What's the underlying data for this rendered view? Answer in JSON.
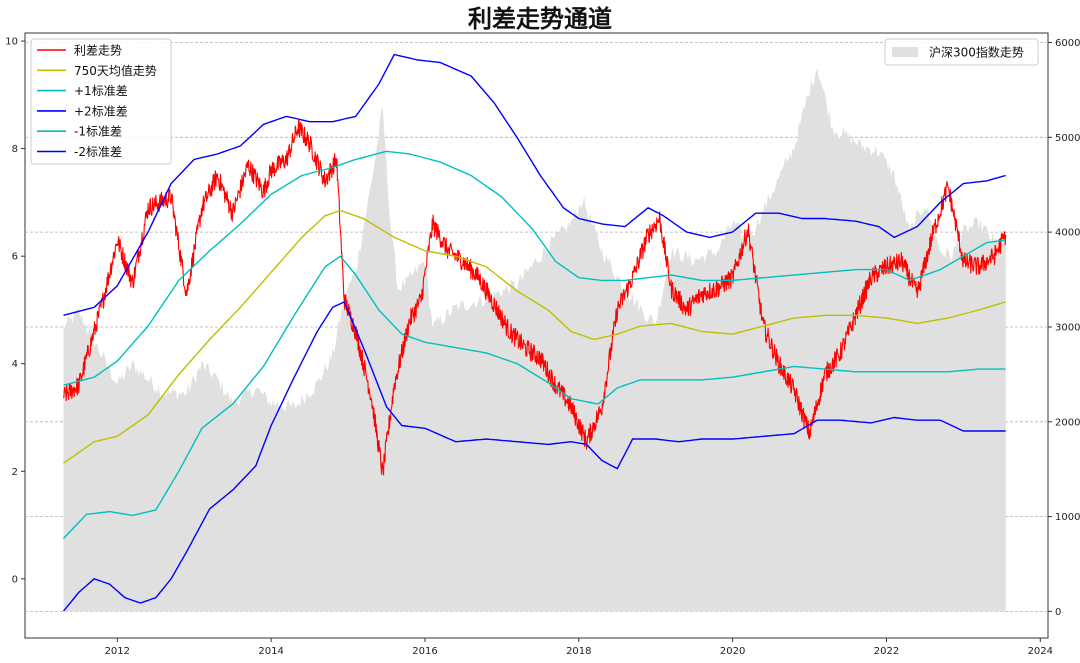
{
  "chart_data": {
    "type": "line",
    "title": "利差走势通道",
    "xlabel": "",
    "ylabel": "",
    "x_ticks": [
      "2012",
      "2014",
      "2016",
      "2018",
      "2020",
      "2022",
      "2024"
    ],
    "x_tick_values": [
      2012,
      2014,
      2016,
      2018,
      2020,
      2022,
      2024
    ],
    "xlim": [
      2010.8,
      2024.1
    ],
    "y_left_ticks": [
      "0",
      "2",
      "4",
      "6",
      "8",
      "10"
    ],
    "y_left_tick_values": [
      0,
      2,
      4,
      6,
      8,
      10
    ],
    "ylim_left": [
      -1.1,
      10.15
    ],
    "y_right_ticks": [
      "0",
      "1000",
      "2000",
      "3000",
      "4000",
      "5000",
      "6000"
    ],
    "y_right_tick_values": [
      0,
      1000,
      2000,
      3000,
      4000,
      5000,
      6000
    ],
    "ylim_right": [
      -280,
      6100
    ],
    "grid": "horizontal dashed at right-axis ticks",
    "legend_left": {
      "position": "top-left",
      "entries": [
        {
          "label": "利差走势",
          "color": "#ff0000"
        },
        {
          "label": "750天均值走势",
          "color": "#bfbf00"
        },
        {
          "label": "+1标准差",
          "color": "#00bfbf"
        },
        {
          "label": "+2标准差",
          "color": "#0000ff"
        },
        {
          "label": "-1标准差",
          "color": "#00bfbf"
        },
        {
          "label": "-2标准差",
          "color": "#0000ff"
        }
      ]
    },
    "legend_right": {
      "position": "top-right",
      "entries": [
        {
          "label": "沪深300指数走势",
          "color": "#e0e0e0"
        }
      ]
    },
    "series": [
      {
        "name": "利差走势",
        "axis": "left",
        "color": "#ff0000",
        "width": 1.1,
        "jitter": 0.18,
        "x": [
          2011.3,
          2011.5,
          2011.8,
          2012.0,
          2012.2,
          2012.4,
          2012.7,
          2012.9,
          2013.1,
          2013.3,
          2013.5,
          2013.7,
          2013.9,
          2014.0,
          2014.2,
          2014.35,
          2014.5,
          2014.7,
          2014.85,
          2014.95,
          2015.1,
          2015.3,
          2015.45,
          2015.6,
          2015.8,
          2015.95,
          2016.1,
          2016.3,
          2016.5,
          2016.7,
          2016.9,
          2017.1,
          2017.3,
          2017.5,
          2017.7,
          2017.9,
          2018.1,
          2018.3,
          2018.5,
          2018.7,
          2018.9,
          2019.05,
          2019.2,
          2019.4,
          2019.6,
          2019.8,
          2020.0,
          2020.2,
          2020.4,
          2020.6,
          2020.8,
          2021.0,
          2021.2,
          2021.4,
          2021.6,
          2021.8,
          2022.0,
          2022.2,
          2022.4,
          2022.6,
          2022.8,
          2023.0,
          2023.2,
          2023.4,
          2023.55
        ],
        "y": [
          3.4,
          3.6,
          5.1,
          6.3,
          5.5,
          6.9,
          7.1,
          5.3,
          6.9,
          7.5,
          6.8,
          7.7,
          7.2,
          7.6,
          7.8,
          8.4,
          8.1,
          7.4,
          7.8,
          5.2,
          4.6,
          3.4,
          1.95,
          3.6,
          4.8,
          5.2,
          6.6,
          6.1,
          5.9,
          5.6,
          5.1,
          4.6,
          4.3,
          4.1,
          3.6,
          3.2,
          2.55,
          3.2,
          5.0,
          5.6,
          6.4,
          6.7,
          5.4,
          5.0,
          5.3,
          5.4,
          5.6,
          6.5,
          4.7,
          4.0,
          3.5,
          2.7,
          3.8,
          4.2,
          4.9,
          5.6,
          5.8,
          5.9,
          5.3,
          6.4,
          7.3,
          5.9,
          5.8,
          6.0,
          6.4
        ]
      },
      {
        "name": "750天均值走势",
        "axis": "left",
        "color": "#bfbf00",
        "width": 1.4,
        "x": [
          2011.3,
          2011.7,
          2012.0,
          2012.4,
          2012.8,
          2013.2,
          2013.6,
          2014.0,
          2014.4,
          2014.7,
          2014.9,
          2015.2,
          2015.6,
          2016.0,
          2016.4,
          2016.8,
          2017.2,
          2017.6,
          2017.9,
          2018.2,
          2018.5,
          2018.8,
          2019.2,
          2019.6,
          2020.0,
          2020.4,
          2020.8,
          2021.2,
          2021.6,
          2022.0,
          2022.4,
          2022.8,
          2023.2,
          2023.55
        ],
        "y": [
          2.15,
          2.55,
          2.65,
          3.05,
          3.8,
          4.45,
          5.05,
          5.7,
          6.35,
          6.75,
          6.85,
          6.7,
          6.35,
          6.1,
          6.0,
          5.8,
          5.35,
          5.0,
          4.6,
          4.45,
          4.55,
          4.7,
          4.75,
          4.6,
          4.55,
          4.7,
          4.85,
          4.9,
          4.9,
          4.85,
          4.75,
          4.85,
          5.0,
          5.15
        ]
      },
      {
        "name": "+1标准差",
        "axis": "left",
        "color": "#00bfbf",
        "width": 1.4,
        "x": [
          2011.3,
          2011.7,
          2012.0,
          2012.4,
          2012.8,
          2013.2,
          2013.6,
          2014.0,
          2014.4,
          2014.8,
          2015.1,
          2015.5,
          2015.8,
          2016.2,
          2016.6,
          2017.0,
          2017.4,
          2017.7,
          2018.0,
          2018.3,
          2018.6,
          2018.9,
          2019.2,
          2019.6,
          2020.0,
          2020.4,
          2020.8,
          2021.2,
          2021.6,
          2022.0,
          2022.3,
          2022.7,
          2023.0,
          2023.3,
          2023.55
        ],
        "y": [
          3.6,
          3.75,
          4.05,
          4.7,
          5.55,
          6.1,
          6.6,
          7.15,
          7.5,
          7.65,
          7.8,
          7.95,
          7.9,
          7.75,
          7.5,
          7.1,
          6.5,
          5.9,
          5.6,
          5.55,
          5.55,
          5.6,
          5.65,
          5.55,
          5.55,
          5.6,
          5.65,
          5.7,
          5.75,
          5.75,
          5.55,
          5.75,
          6.0,
          6.25,
          6.3
        ]
      },
      {
        "name": "+2标准差",
        "axis": "left",
        "color": "#0000ff",
        "width": 1.4,
        "x": [
          2011.3,
          2011.7,
          2012.0,
          2012.4,
          2012.7,
          2013.0,
          2013.3,
          2013.6,
          2013.9,
          2014.2,
          2014.5,
          2014.8,
          2015.1,
          2015.4,
          2015.6,
          2015.9,
          2016.2,
          2016.6,
          2016.9,
          2017.2,
          2017.5,
          2017.8,
          2018.0,
          2018.3,
          2018.6,
          2018.9,
          2019.1,
          2019.4,
          2019.7,
          2020.0,
          2020.3,
          2020.6,
          2020.9,
          2021.2,
          2021.6,
          2021.9,
          2022.1,
          2022.4,
          2022.7,
          2023.0,
          2023.3,
          2023.55
        ],
        "y": [
          4.9,
          5.05,
          5.45,
          6.45,
          7.35,
          7.8,
          7.9,
          8.05,
          8.45,
          8.6,
          8.5,
          8.5,
          8.6,
          9.2,
          9.75,
          9.65,
          9.6,
          9.35,
          8.85,
          8.2,
          7.5,
          6.9,
          6.7,
          6.6,
          6.55,
          6.9,
          6.75,
          6.45,
          6.35,
          6.45,
          6.8,
          6.8,
          6.7,
          6.7,
          6.65,
          6.55,
          6.35,
          6.55,
          7.0,
          7.35,
          7.4,
          7.5
        ]
      },
      {
        "name": "-1标准差",
        "axis": "left",
        "color": "#00bfbf",
        "width": 1.4,
        "x": [
          2011.3,
          2011.6,
          2011.9,
          2012.2,
          2012.5,
          2012.8,
          2013.1,
          2013.5,
          2013.9,
          2014.3,
          2014.7,
          2014.9,
          2015.1,
          2015.4,
          2015.7,
          2016.0,
          2016.4,
          2016.8,
          2017.2,
          2017.6,
          2017.9,
          2018.25,
          2018.5,
          2018.8,
          2019.2,
          2019.6,
          2020.0,
          2020.4,
          2020.8,
          2021.2,
          2021.6,
          2022.0,
          2022.4,
          2022.8,
          2023.2,
          2023.55
        ],
        "y": [
          0.75,
          1.2,
          1.25,
          1.18,
          1.28,
          2.0,
          2.8,
          3.25,
          3.95,
          4.9,
          5.8,
          6.0,
          5.65,
          5.0,
          4.55,
          4.4,
          4.3,
          4.2,
          4.0,
          3.65,
          3.35,
          3.25,
          3.55,
          3.7,
          3.7,
          3.7,
          3.75,
          3.85,
          3.95,
          3.9,
          3.85,
          3.85,
          3.85,
          3.85,
          3.9,
          3.9
        ]
      },
      {
        "name": "-2标准差",
        "axis": "left",
        "color": "#0000ff",
        "width": 1.4,
        "x": [
          2011.3,
          2011.5,
          2011.7,
          2011.9,
          2012.1,
          2012.3,
          2012.5,
          2012.7,
          2012.9,
          2013.2,
          2013.5,
          2013.8,
          2014.0,
          2014.3,
          2014.6,
          2014.8,
          2014.95,
          2015.2,
          2015.5,
          2015.7,
          2016.0,
          2016.4,
          2016.8,
          2017.2,
          2017.6,
          2017.9,
          2018.1,
          2018.3,
          2018.5,
          2018.7,
          2019.0,
          2019.3,
          2019.6,
          2020.0,
          2020.4,
          2020.8,
          2021.1,
          2021.4,
          2021.8,
          2022.1,
          2022.4,
          2022.7,
          2023.0,
          2023.3,
          2023.55
        ],
        "y": [
          -0.6,
          -0.25,
          0.0,
          -0.1,
          -0.35,
          -0.45,
          -0.35,
          0.0,
          0.5,
          1.3,
          1.65,
          2.1,
          2.85,
          3.75,
          4.6,
          5.05,
          5.15,
          4.3,
          3.2,
          2.85,
          2.8,
          2.55,
          2.6,
          2.55,
          2.5,
          2.55,
          2.5,
          2.2,
          2.05,
          2.6,
          2.6,
          2.55,
          2.6,
          2.6,
          2.65,
          2.7,
          2.95,
          2.95,
          2.9,
          3.0,
          2.95,
          2.95,
          2.75,
          2.75,
          2.75
        ]
      },
      {
        "name": "沪深300指数走势",
        "axis": "right",
        "color": "#e0e0e0",
        "type": "area",
        "x": [
          2011.3,
          2011.5,
          2011.7,
          2012.0,
          2012.2,
          2012.4,
          2012.6,
          2012.9,
          2013.1,
          2013.3,
          2013.5,
          2013.8,
          2014.0,
          2014.3,
          2014.6,
          2014.8,
          2014.95,
          2015.1,
          2015.3,
          2015.45,
          2015.55,
          2015.65,
          2015.8,
          2016.0,
          2016.1,
          2016.4,
          2016.8,
          2017.2,
          2017.6,
          2017.9,
          2018.05,
          2018.3,
          2018.6,
          2018.9,
          2019.0,
          2019.2,
          2019.5,
          2019.8,
          2020.0,
          2020.2,
          2020.5,
          2020.8,
          2021.0,
          2021.1,
          2021.3,
          2021.5,
          2021.7,
          2021.9,
          2022.1,
          2022.3,
          2022.5,
          2022.7,
          2022.85,
          2023.0,
          2023.2,
          2023.4,
          2023.55
        ],
        "y": [
          3000,
          3150,
          2850,
          2400,
          2600,
          2450,
          2300,
          2300,
          2600,
          2450,
          2200,
          2350,
          2200,
          2150,
          2400,
          2700,
          3300,
          3600,
          4500,
          5300,
          4100,
          3400,
          3500,
          3700,
          3000,
          3200,
          3300,
          3450,
          3850,
          4100,
          4350,
          3800,
          3400,
          3100,
          3050,
          3800,
          3700,
          3800,
          4100,
          3900,
          4400,
          4900,
          5500,
          5750,
          5100,
          5000,
          4900,
          4850,
          4600,
          4000,
          4300,
          3800,
          3750,
          4000,
          4100,
          3900,
          3850
        ]
      }
    ]
  }
}
